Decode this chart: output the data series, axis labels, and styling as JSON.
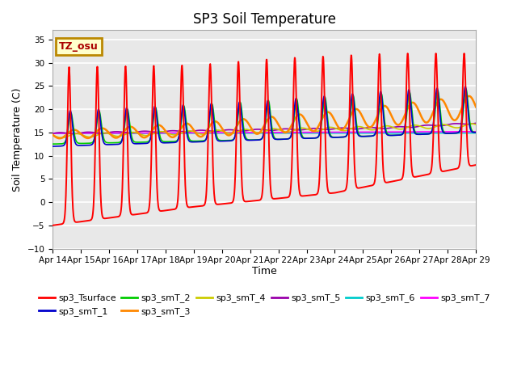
{
  "title": "SP3 Soil Temperature",
  "xlabel": "Time",
  "ylabel": "Soil Temperature (C)",
  "ylim": [
    -10,
    37
  ],
  "yticks": [
    -10,
    -5,
    0,
    5,
    10,
    15,
    20,
    25,
    30,
    35
  ],
  "annotation_text": "TZ_osu",
  "annotation_bg": "#FFFFCC",
  "annotation_border": "#BB8800",
  "series_colors": {
    "sp3_Tsurface": "#FF0000",
    "sp3_smT_1": "#0000CC",
    "sp3_smT_2": "#00CC00",
    "sp3_smT_3": "#FF8800",
    "sp3_smT_4": "#CCCC00",
    "sp3_smT_5": "#9900AA",
    "sp3_smT_6": "#00CCCC",
    "sp3_smT_7": "#FF00FF"
  },
  "xtick_labels": [
    "Apr 14",
    "Apr 15",
    "Apr 16",
    "Apr 17",
    "Apr 18",
    "Apr 19",
    "Apr 20",
    "Apr 21",
    "Apr 22",
    "Apr 23",
    "Apr 24",
    "Apr 25",
    "Apr 26",
    "Apr 27",
    "Apr 28",
    "Apr 29"
  ],
  "background_color": "#E8E8E8",
  "grid_color": "#FFFFFF"
}
